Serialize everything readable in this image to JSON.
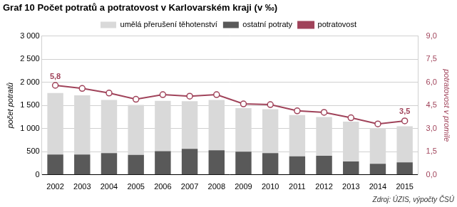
{
  "chart_data": {
    "type": "bar",
    "title": "Graf 10 Počet potratů a potratovost v Karlovarském kraji (v ‰)",
    "source": "Zdroj: ÚZIS, výpočty ČSÚ",
    "y_label": "počet potratů",
    "y2_label": "potratovost v promile",
    "categories": [
      "2002",
      "2003",
      "2004",
      "2005",
      "2006",
      "2007",
      "2008",
      "2009",
      "2010",
      "2011",
      "2012",
      "2013",
      "2014",
      "2015"
    ],
    "stacked": true,
    "grid": true,
    "legend": "top",
    "series": [
      {
        "name": "umělá přerušení těhotenství",
        "color": "#d9d9d9",
        "values": [
          1330,
          1280,
          1150,
          1080,
          1090,
          1030,
          1090,
          940,
          950,
          890,
          840,
          860,
          770,
          780
        ]
      },
      {
        "name": "ostatní potraty",
        "color": "#595959",
        "values": [
          440,
          440,
          470,
          430,
          510,
          560,
          530,
          500,
          470,
          400,
          410,
          290,
          240,
          270
        ]
      },
      {
        "name": "potratovost",
        "type": "line",
        "axis": "y2",
        "color": "#a0435a",
        "marker": "circle",
        "values": [
          5.8,
          5.6,
          5.3,
          4.9,
          5.2,
          5.1,
          5.2,
          4.6,
          4.55,
          4.15,
          4.05,
          3.7,
          3.3,
          3.5
        ],
        "value_labels": [
          "5,8",
          null,
          null,
          null,
          null,
          null,
          null,
          null,
          null,
          null,
          null,
          null,
          null,
          "3,5"
        ]
      }
    ],
    "ylim": [
      0,
      3000
    ],
    "yticks": [
      0,
      500,
      {
        "value": 1000,
        "label": "1 000"
      },
      {
        "value": 1500,
        "label": "1 500"
      },
      {
        "value": 2000,
        "label": "2 000"
      },
      {
        "value": 2500,
        "label": "2 500"
      },
      {
        "value": 3000,
        "label": "3 000"
      }
    ],
    "y2lim": [
      0,
      9
    ],
    "y2ticks": [
      {
        "value": 0,
        "label": "0,0"
      },
      {
        "value": 1.5,
        "label": "1,5"
      },
      {
        "value": 3,
        "label": "3,0"
      },
      {
        "value": 4.5,
        "label": "4,5"
      },
      {
        "value": 6,
        "label": "6,0"
      },
      {
        "value": 7.5,
        "label": "7,5"
      },
      {
        "value": 9,
        "label": "9,0"
      }
    ]
  }
}
